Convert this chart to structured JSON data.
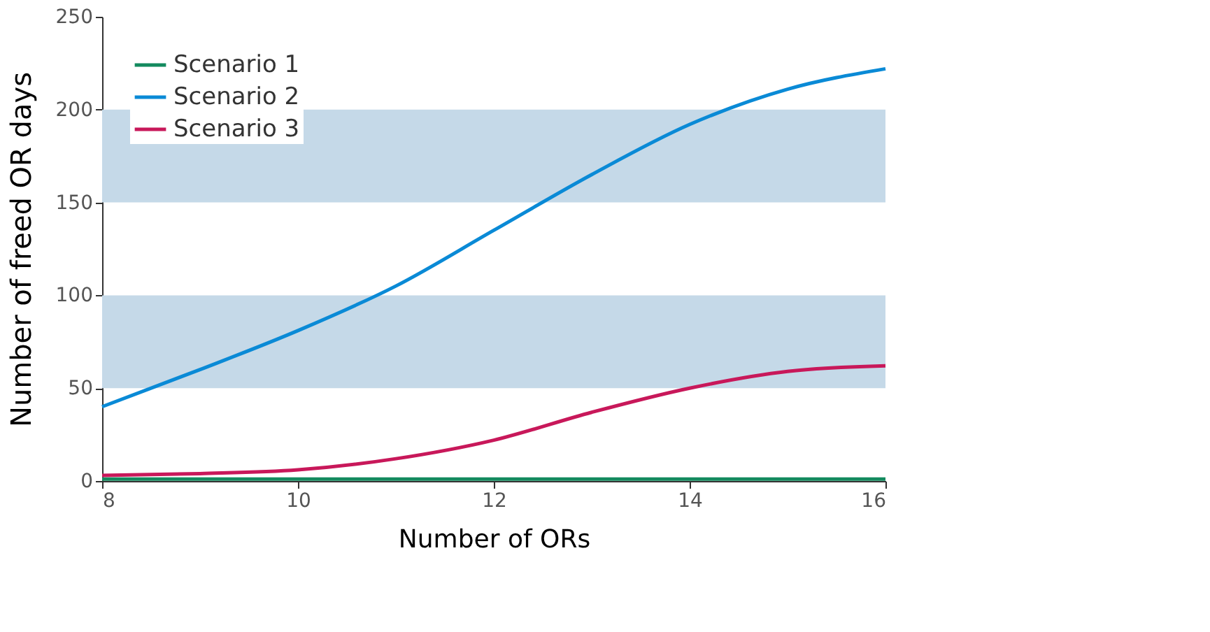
{
  "chart_data": {
    "type": "line",
    "xlabel": "Number of ORs",
    "ylabel": "Number of freed OR days",
    "x": [
      8,
      9,
      10,
      11,
      12,
      13,
      14,
      15,
      16
    ],
    "series": [
      {
        "name": "Scenario 1",
        "color": "#138a5e",
        "values": [
          1,
          1,
          1,
          1,
          1,
          1,
          1,
          1,
          1
        ]
      },
      {
        "name": "Scenario 2",
        "color": "#0a8ad6",
        "values": [
          40,
          60,
          81,
          105,
          135,
          165,
          192,
          211,
          222
        ]
      },
      {
        "name": "Scenario 3",
        "color": "#c8185a",
        "values": [
          3,
          4,
          6,
          12,
          22,
          37,
          50,
          59,
          62
        ]
      }
    ],
    "bands": [
      {
        "axis": "y",
        "from": 50,
        "to": 100,
        "color": "#c5d9e8"
      },
      {
        "axis": "y",
        "from": 150,
        "to": 200,
        "color": "#c5d9e8"
      }
    ],
    "xlim": [
      8,
      16
    ],
    "xticks": [
      8,
      10,
      12,
      14,
      16
    ],
    "ylim": [
      0,
      250
    ],
    "yticks": [
      0,
      50,
      100,
      150,
      200,
      250
    ],
    "grid": false,
    "legend": "top left",
    "marker": "none",
    "line_style": "solid"
  }
}
